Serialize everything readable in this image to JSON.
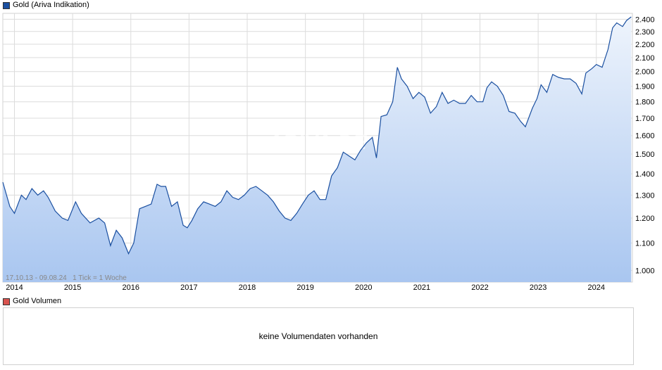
{
  "legend": {
    "price_label": "Gold (Ariva Indikation)",
    "price_color": "#1a4fa0",
    "volume_label": "Gold Volumen",
    "volume_color": "#d9534f"
  },
  "watermark": "ARIVA.DE",
  "period_label": "17.10.13 - 09.08.24   1 Tick = 1 Woche",
  "volume_panel": {
    "message": "keine Volumendaten vorhanden"
  },
  "colors": {
    "line": "#1a4fa0",
    "fill_top": "#eef4fc",
    "fill_bottom": "#a9c6f0",
    "grid": "#dcdcdc"
  },
  "chart_data": {
    "type": "area",
    "title": "Gold (Ariva Indikation)",
    "xlabel": "",
    "ylabel": "",
    "y_scale": "log",
    "ylim": [
      960,
      2450
    ],
    "xlim": [
      2013.8,
      2024.62
    ],
    "y_ticks": [
      1000,
      1100,
      1200,
      1300,
      1400,
      1500,
      1600,
      1700,
      1800,
      1900,
      2000,
      2100,
      2200,
      2300,
      2400
    ],
    "y_tick_labels": [
      "1.000",
      "1.100",
      "1.200",
      "1.300",
      "1.400",
      "1.500",
      "1.600",
      "1.700",
      "1.800",
      "1.900",
      "2.000",
      "2.100",
      "2.200",
      "2.300",
      "2.400"
    ],
    "x_ticks": [
      2014,
      2015,
      2016,
      2017,
      2018,
      2019,
      2020,
      2021,
      2022,
      2023,
      2024
    ],
    "x_tick_labels": [
      "2014",
      "2015",
      "2016",
      "2017",
      "2018",
      "2019",
      "2020",
      "2021",
      "2022",
      "2023",
      "2024"
    ],
    "grid": true,
    "series": [
      {
        "name": "Gold (Ariva Indikation)",
        "x": [
          2013.8,
          2013.92,
          2014.0,
          2014.12,
          2014.2,
          2014.3,
          2014.4,
          2014.5,
          2014.58,
          2014.7,
          2014.82,
          2014.92,
          2015.05,
          2015.15,
          2015.3,
          2015.45,
          2015.55,
          2015.65,
          2015.75,
          2015.85,
          2015.96,
          2016.05,
          2016.15,
          2016.25,
          2016.35,
          2016.45,
          2016.52,
          2016.6,
          2016.7,
          2016.8,
          2016.9,
          2016.97,
          2017.05,
          2017.15,
          2017.25,
          2017.35,
          2017.45,
          2017.55,
          2017.65,
          2017.75,
          2017.85,
          2017.95,
          2018.05,
          2018.15,
          2018.25,
          2018.35,
          2018.45,
          2018.55,
          2018.65,
          2018.75,
          2018.85,
          2018.95,
          2019.05,
          2019.15,
          2019.25,
          2019.35,
          2019.45,
          2019.55,
          2019.65,
          2019.75,
          2019.85,
          2019.95,
          2020.05,
          2020.15,
          2020.22,
          2020.3,
          2020.4,
          2020.5,
          2020.58,
          2020.65,
          2020.75,
          2020.85,
          2020.95,
          2021.05,
          2021.15,
          2021.25,
          2021.35,
          2021.45,
          2021.55,
          2021.65,
          2021.75,
          2021.85,
          2021.95,
          2022.05,
          2022.12,
          2022.2,
          2022.3,
          2022.4,
          2022.5,
          2022.6,
          2022.7,
          2022.78,
          2022.9,
          2022.98,
          2023.05,
          2023.15,
          2023.25,
          2023.35,
          2023.45,
          2023.55,
          2023.65,
          2023.75,
          2023.82,
          2023.92,
          2024.0,
          2024.1,
          2024.2,
          2024.28,
          2024.35,
          2024.45,
          2024.52,
          2024.6
        ],
        "values": [
          1360,
          1250,
          1220,
          1300,
          1280,
          1330,
          1300,
          1320,
          1290,
          1230,
          1200,
          1190,
          1270,
          1220,
          1180,
          1200,
          1180,
          1090,
          1150,
          1120,
          1060,
          1100,
          1240,
          1250,
          1260,
          1350,
          1340,
          1340,
          1250,
          1270,
          1170,
          1160,
          1190,
          1240,
          1270,
          1260,
          1250,
          1270,
          1320,
          1290,
          1280,
          1300,
          1330,
          1340,
          1320,
          1300,
          1270,
          1230,
          1200,
          1190,
          1220,
          1260,
          1300,
          1320,
          1280,
          1280,
          1390,
          1430,
          1510,
          1490,
          1470,
          1520,
          1560,
          1590,
          1480,
          1710,
          1720,
          1800,
          2030,
          1950,
          1900,
          1820,
          1860,
          1830,
          1730,
          1770,
          1860,
          1790,
          1810,
          1790,
          1790,
          1840,
          1800,
          1800,
          1890,
          1930,
          1900,
          1840,
          1740,
          1730,
          1680,
          1650,
          1760,
          1820,
          1910,
          1860,
          1980,
          1960,
          1950,
          1950,
          1920,
          1850,
          1990,
          2020,
          2050,
          2030,
          2160,
          2330,
          2370,
          2340,
          2390,
          2420
        ]
      }
    ]
  }
}
